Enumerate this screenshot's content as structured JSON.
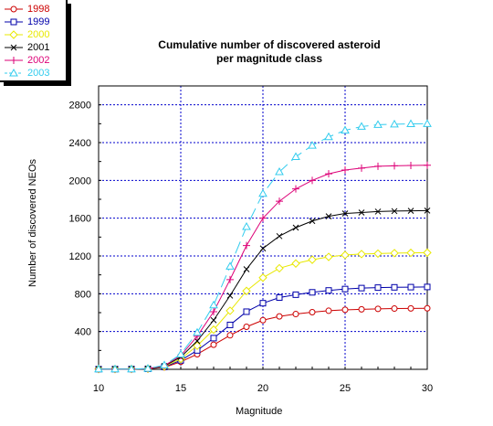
{
  "chart_data": {
    "type": "line",
    "title_line1": "Cumulative number of discovered asteroid",
    "title_line2": "per magnitude class",
    "xlabel": "Magnitude",
    "ylabel": "Number of discovered NEOs",
    "xlim": [
      10,
      30
    ],
    "ylim": [
      0,
      3000
    ],
    "xticks": [
      10,
      15,
      20,
      25,
      30
    ],
    "yticks": [
      400,
      800,
      1200,
      1600,
      2000,
      2400,
      2800
    ],
    "grid": true,
    "legend_position": "top-left",
    "x": [
      10,
      11,
      12,
      13,
      14,
      15,
      16,
      17,
      18,
      19,
      20,
      21,
      22,
      23,
      24,
      25,
      26,
      27,
      28,
      29,
      30
    ],
    "series": [
      {
        "name": "1998",
        "color": "#cc0000",
        "marker": "circle",
        "values": [
          2,
          2,
          3,
          5,
          20,
          80,
          160,
          260,
          360,
          450,
          520,
          560,
          585,
          605,
          620,
          630,
          635,
          640,
          643,
          645,
          646
        ]
      },
      {
        "name": "1999",
        "color": "#0000aa",
        "marker": "square",
        "values": [
          2,
          2,
          3,
          5,
          25,
          95,
          200,
          330,
          470,
          610,
          700,
          760,
          790,
          815,
          835,
          850,
          860,
          865,
          868,
          870,
          872
        ]
      },
      {
        "name": "2000",
        "color": "#e8e800",
        "marker": "diamond",
        "values": [
          2,
          2,
          3,
          6,
          30,
          110,
          250,
          420,
          620,
          830,
          970,
          1070,
          1120,
          1160,
          1190,
          1210,
          1220,
          1225,
          1230,
          1233,
          1235
        ]
      },
      {
        "name": "2001",
        "color": "#000000",
        "marker": "x",
        "values": [
          2,
          2,
          3,
          6,
          35,
          130,
          300,
          520,
          780,
          1060,
          1280,
          1410,
          1500,
          1570,
          1620,
          1650,
          1660,
          1670,
          1675,
          1678,
          1680
        ]
      },
      {
        "name": "2002",
        "color": "#dd0077",
        "marker": "plus",
        "values": [
          2,
          2,
          3,
          7,
          40,
          145,
          350,
          610,
          950,
          1310,
          1600,
          1780,
          1910,
          2000,
          2070,
          2110,
          2130,
          2150,
          2155,
          2158,
          2160
        ]
      },
      {
        "name": "2003",
        "color": "#33ccee",
        "marker": "triangle",
        "dashed": true,
        "values": [
          2,
          2,
          3,
          8,
          45,
          160,
          390,
          680,
          1090,
          1510,
          1860,
          2090,
          2250,
          2370,
          2460,
          2530,
          2570,
          2590,
          2595,
          2598,
          2600
        ]
      }
    ]
  }
}
